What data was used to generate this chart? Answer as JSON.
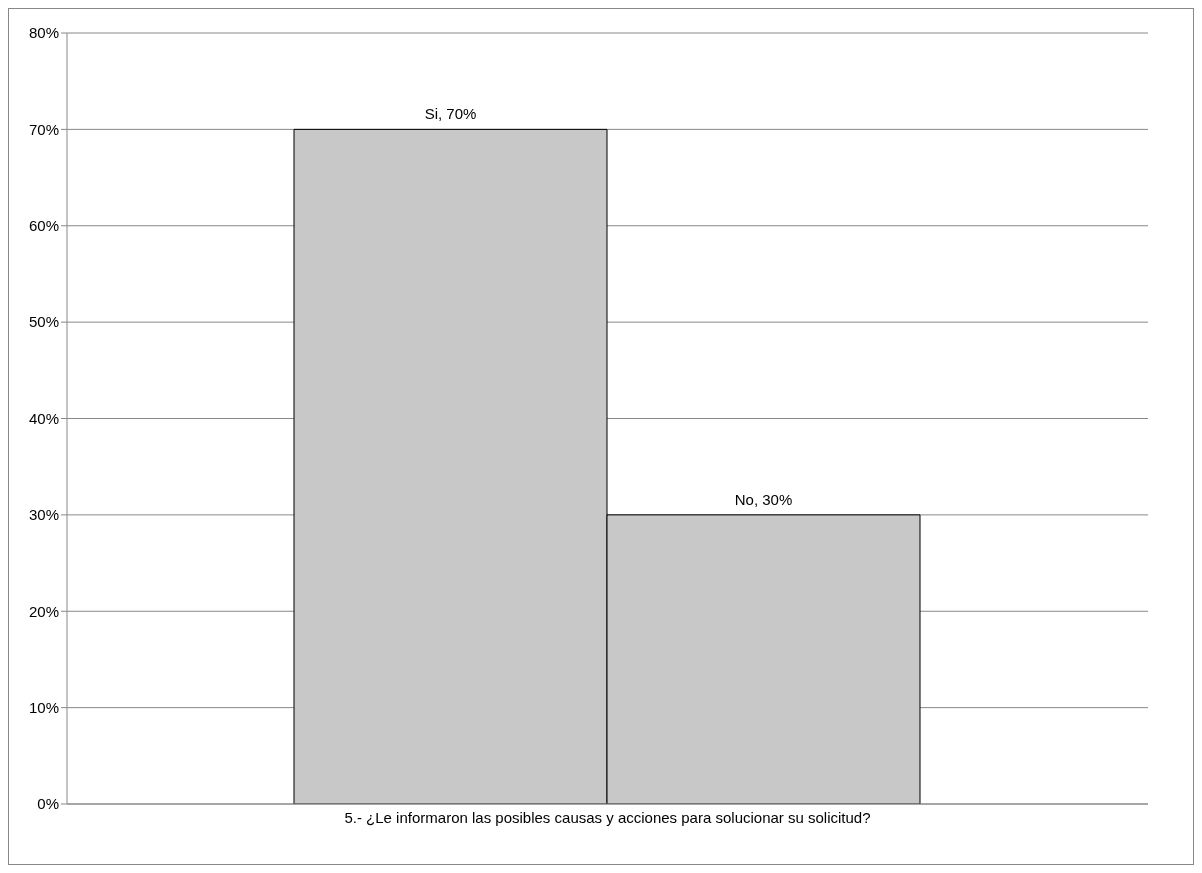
{
  "chart_data": {
    "type": "bar",
    "categories": [
      "5.- ¿Le informaron  las posibles  causas y  acciones para  solucionar su  solicitud?"
    ],
    "series": [
      {
        "name": "Si",
        "color": "#c8c8c8",
        "values": [
          70
        ],
        "value_labels": [
          ", 70%"
        ]
      },
      {
        "name": "No",
        "color": "#c8c8c8",
        "values": [
          30
        ],
        "value_labels": [
          ", 30%"
        ]
      }
    ],
    "ylim": [
      0,
      80
    ],
    "yticks": [
      {
        "value": 0,
        "label": "0%"
      },
      {
        "value": 10,
        "label": "10%"
      },
      {
        "value": 20,
        "label": "20%"
      },
      {
        "value": 30,
        "label": "30%"
      },
      {
        "value": 40,
        "label": "40%"
      },
      {
        "value": 50,
        "label": "50%"
      },
      {
        "value": 60,
        "label": "60%"
      },
      {
        "value": 70,
        "label": "70%"
      },
      {
        "value": 80,
        "label": "80%"
      }
    ],
    "grid": "y",
    "legend": false
  }
}
